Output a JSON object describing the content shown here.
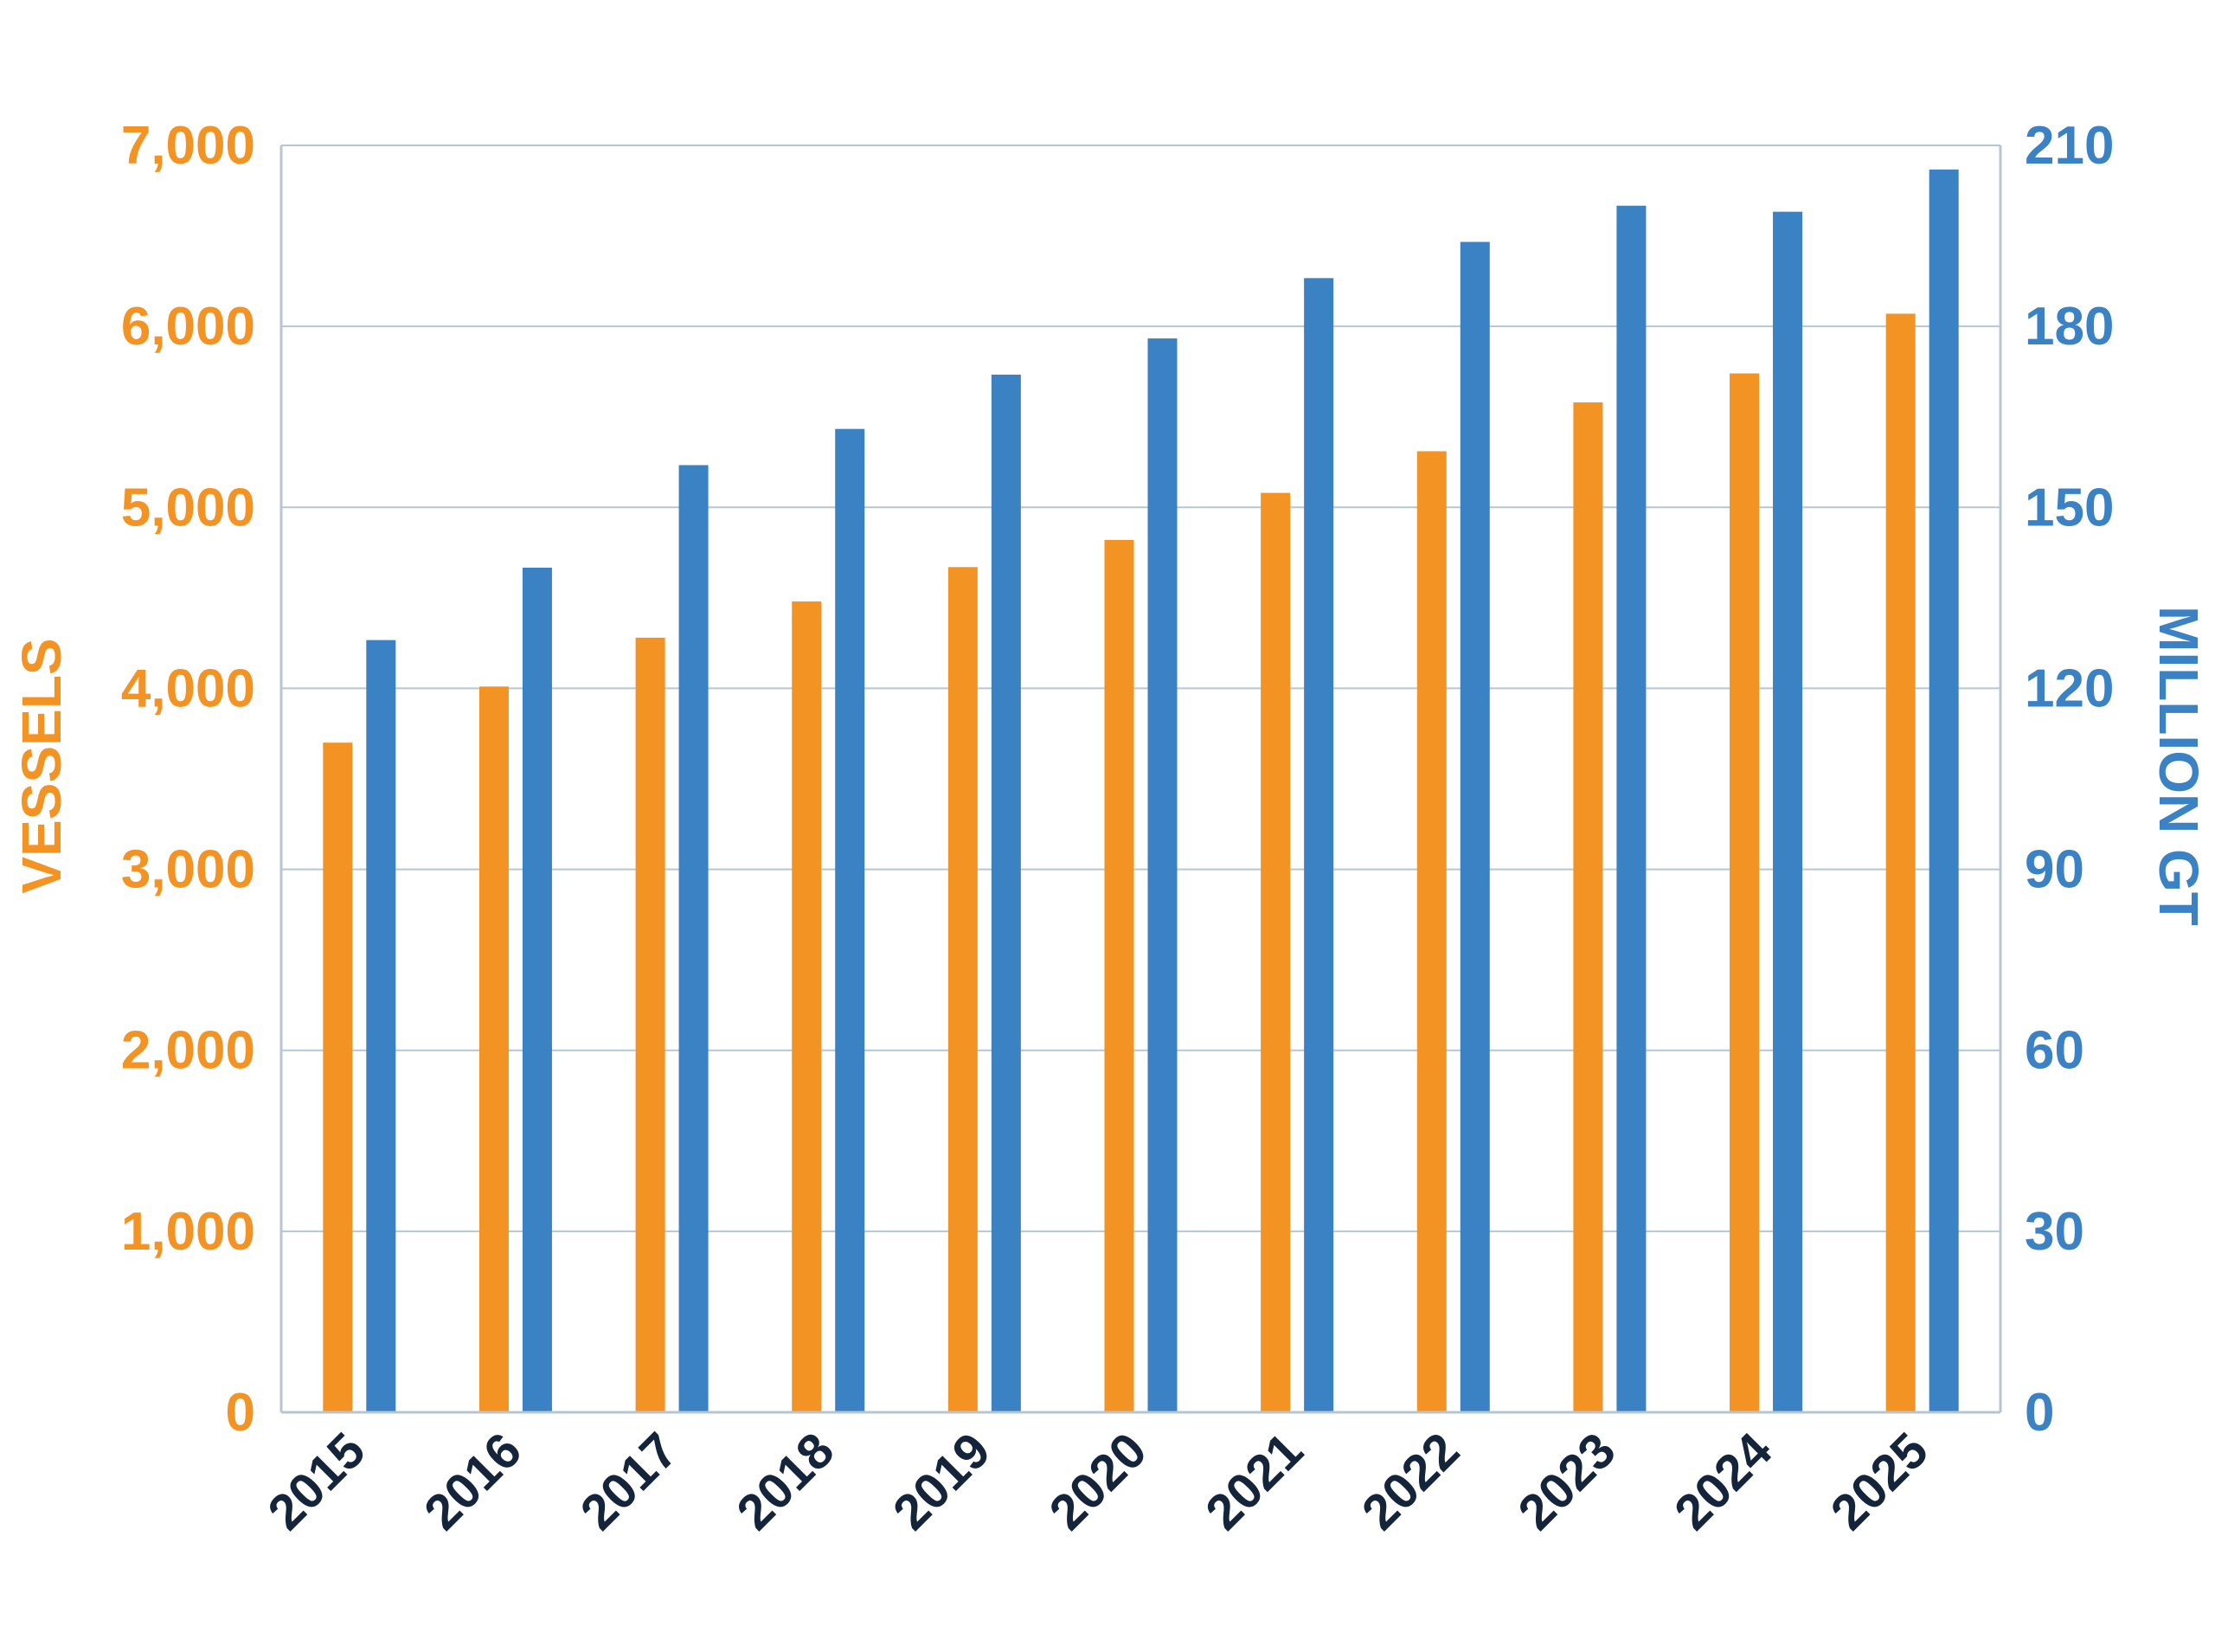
{
  "chart_data": {
    "type": "bar",
    "categories": [
      "2015",
      "2016",
      "2017",
      "2018",
      "2019",
      "2020",
      "2021",
      "2022",
      "2023",
      "2024",
      "2025"
    ],
    "series": [
      {
        "axis": "left",
        "color": "#F39324",
        "values": [
          3700,
          4010,
          4280,
          4480,
          4670,
          4820,
          5080,
          5310,
          5580,
          5740,
          6070
        ]
      },
      {
        "axis": "right",
        "color": "#3A82C4",
        "values": [
          128,
          140,
          157,
          163,
          172,
          178,
          188,
          194,
          200,
          199,
          206
        ]
      }
    ],
    "y_left": {
      "label": "VESSELS",
      "ylim": [
        0,
        7000
      ],
      "ticks": [
        0,
        1000,
        2000,
        3000,
        4000,
        5000,
        6000,
        7000
      ],
      "tick_labels": [
        "0",
        "1,000",
        "2,000",
        "3,000",
        "4,000",
        "5,000",
        "6,000",
        "7,000"
      ],
      "color": "#F39324"
    },
    "y_right": {
      "label": "MILLION GT",
      "ylim": [
        0,
        210
      ],
      "ticks": [
        0,
        30,
        60,
        90,
        120,
        150,
        180,
        210
      ],
      "tick_labels": [
        "0",
        "30",
        "60",
        "90",
        "120",
        "150",
        "180",
        "210"
      ],
      "color": "#3A82C4"
    },
    "x_tick_color": "#14243A",
    "grid": true,
    "grid_color": "#B7C6D3"
  }
}
